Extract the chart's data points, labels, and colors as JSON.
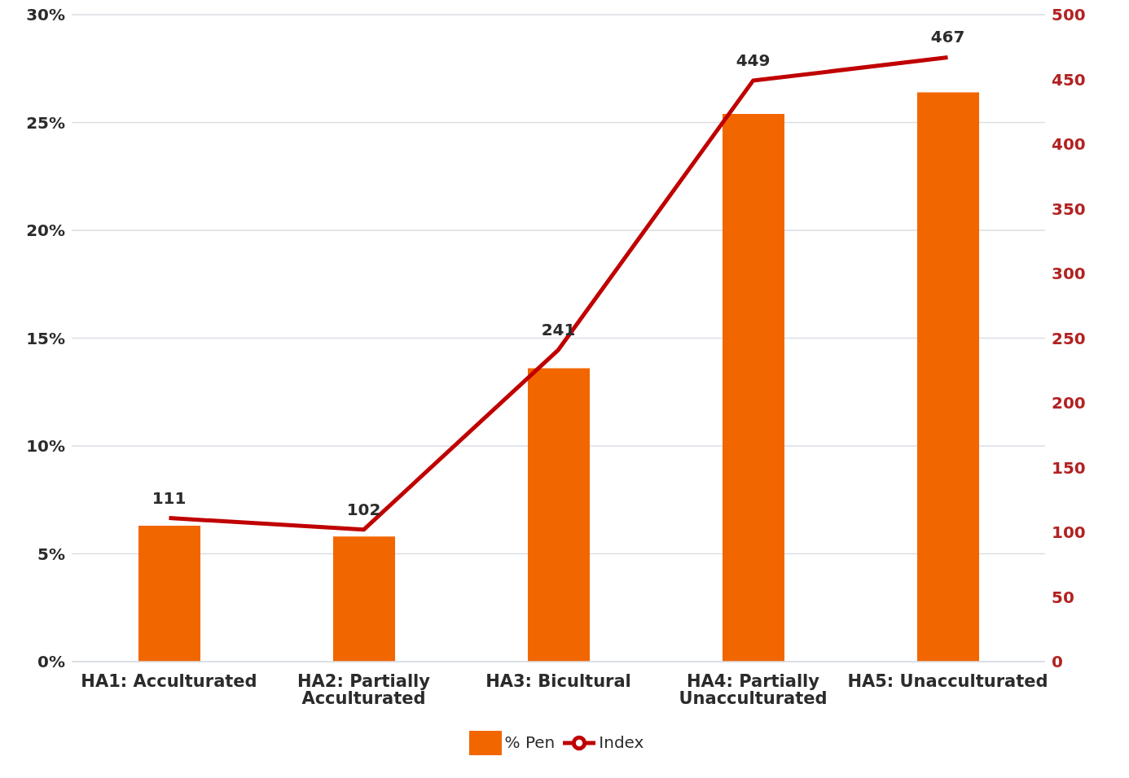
{
  "chart_data": {
    "type": "bar",
    "categories": [
      "HA1: Acculturated",
      "HA2: Partially Acculturated",
      "HA3: Bicultural",
      "HA4: Partially Unacculturated",
      "HA5: Unacculturated"
    ],
    "series": [
      {
        "name": "% Pen",
        "color": "#f26600",
        "values": [
          6.3,
          5.8,
          13.6,
          25.4,
          26.4
        ]
      },
      {
        "name": "Index",
        "type": "line",
        "axis": "y2",
        "color": "#c00000",
        "values": [
          111,
          102,
          241,
          449,
          467
        ],
        "data_labels": true
      }
    ],
    "ylim": [
      0,
      30
    ],
    "yticks": [
      {
        "value": 0,
        "label": "0%"
      },
      {
        "value": 5,
        "label": "5%"
      },
      {
        "value": 10,
        "label": "10%"
      },
      {
        "value": 15,
        "label": "15%"
      },
      {
        "value": 20,
        "label": "20%"
      },
      {
        "value": 25,
        "label": "25%"
      },
      {
        "value": 30,
        "label": "30%"
      }
    ],
    "y2lim": [
      0,
      500
    ],
    "y2ticks": [
      0,
      50,
      100,
      150,
      200,
      250,
      300,
      350,
      400,
      450,
      500
    ],
    "grid": "y",
    "legend": "bottom",
    "marker": "none"
  }
}
